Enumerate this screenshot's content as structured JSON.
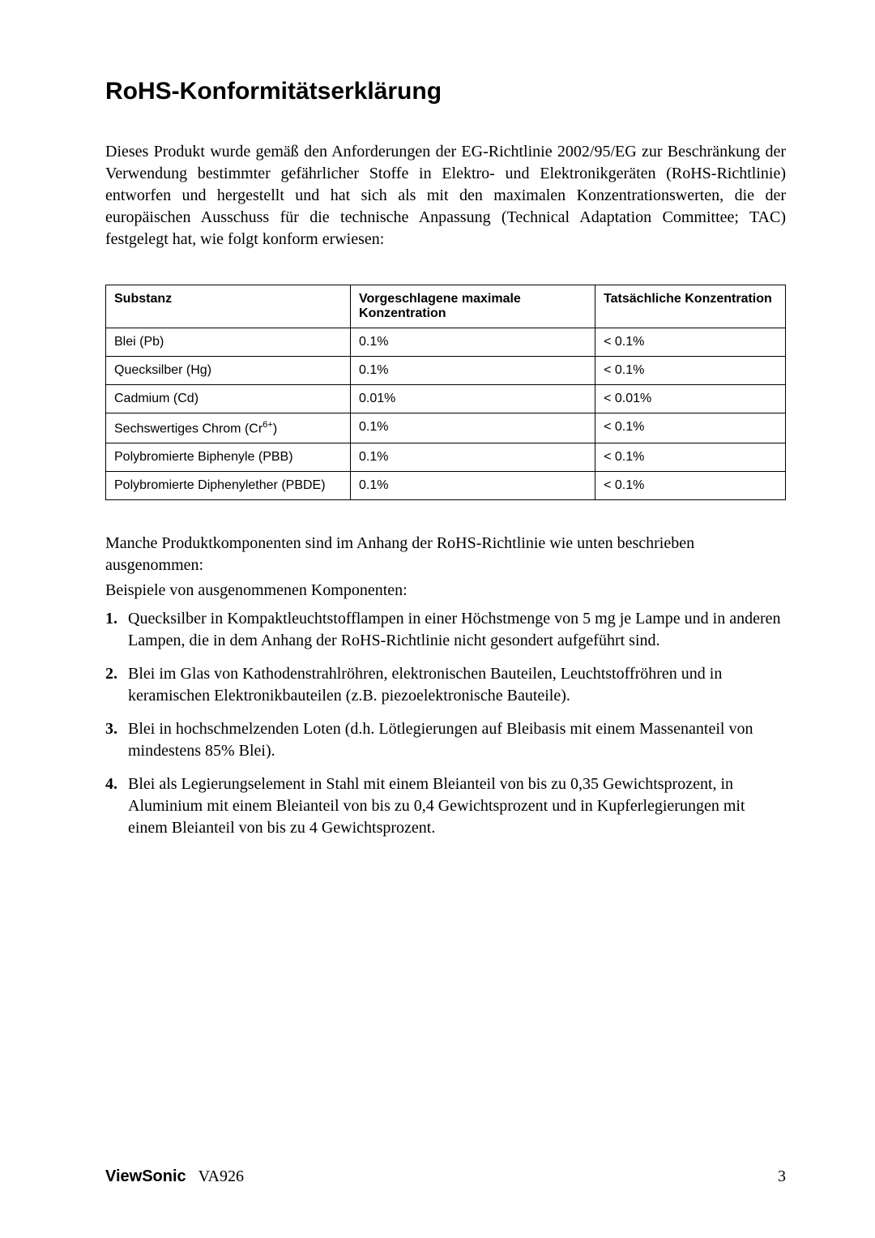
{
  "title": "RoHS-Konformitätserklärung",
  "intro": "Dieses Produkt wurde gemäß den Anforderungen der EG-Richtlinie 2002/95/EG zur Beschränkung der Verwendung bestimmter gefährlicher Stoffe in Elektro- und Elektronikgeräten (RoHS-Richtlinie) entworfen und hergestellt und hat sich als mit den maximalen Konzentrationswerten, die der europäischen Ausschuss für die technische Anpassung (Technical Adaptation Committee; TAC) festgelegt hat, wie folgt konform erwiesen:",
  "table": {
    "type": "table",
    "font_family": "Arial, Helvetica, sans-serif",
    "font_size_pt": 12,
    "border_color": "#000000",
    "background_color": "#ffffff",
    "column_widths_pct": [
      36,
      36,
      28
    ],
    "columns": [
      "Substanz",
      "Vorgeschlagene maximale Konzentration",
      "Tatsächliche Konzentration"
    ],
    "rows": [
      {
        "substance": "Blei (Pb)",
        "proposed": "0.1%",
        "actual": "< 0.1%"
      },
      {
        "substance": "Quecksilber (Hg)",
        "proposed": "0.1%",
        "actual": "< 0.1%"
      },
      {
        "substance": "Cadmium (Cd)",
        "proposed": "0.01%",
        "actual": "< 0.01%"
      },
      {
        "substance_html": "Sechswertiges Chrom (Cr<sup>6+</sup>)",
        "substance": "Sechswertiges Chrom (Cr6+)",
        "proposed": "0.1%",
        "actual": "< 0.1%"
      },
      {
        "substance": "Polybromierte Biphenyle (PBB)",
        "proposed": "0.1%",
        "actual": "< 0.1%"
      },
      {
        "substance": "Polybromierte Diphenylether (PBDE)",
        "proposed": "0.1%",
        "actual": "< 0.1%"
      }
    ]
  },
  "para_after_table_1": "Manche Produktkomponenten sind im Anhang der RoHS-Richtlinie wie unten beschrieben ausgenommen:",
  "para_after_table_2": "Beispiele von ausgenommenen Komponenten:",
  "exemptions": [
    "Quecksilber in Kompaktleuchtstofflampen in einer Höchstmenge von 5 mg je Lampe und in anderen Lampen, die in dem Anhang der RoHS-Richtlinie nicht gesondert aufgeführt sind.",
    "Blei im Glas von Kathodenstrahlröhren, elektronischen Bauteilen, Leuchtstoffröhren und in keramischen Elektronikbauteilen (z.B. piezoelektronische Bauteile).",
    "Blei in hochschmelzenden Loten (d.h. Lötlegierungen auf Bleibasis mit einem Massenanteil von mindestens 85% Blei).",
    "Blei als Legierungselement in Stahl mit einem Bleianteil von bis zu 0,35 Gewichtsprozent, in Aluminium mit einem Bleianteil von bis zu 0,4 Gewichtsprozent und in Kupferlegierungen mit einem Bleianteil von bis zu 4 Gewichtsprozent."
  ],
  "footer": {
    "brand": "ViewSonic",
    "model": "VA926",
    "page": "3"
  },
  "colors": {
    "text": "#000000",
    "background": "#ffffff",
    "border": "#000000"
  },
  "typography": {
    "body_font": "Times New Roman",
    "body_size_pt": 15,
    "title_font": "Arial",
    "title_size_pt": 22,
    "title_weight": 700,
    "table_font": "Arial",
    "table_size_pt": 12
  }
}
